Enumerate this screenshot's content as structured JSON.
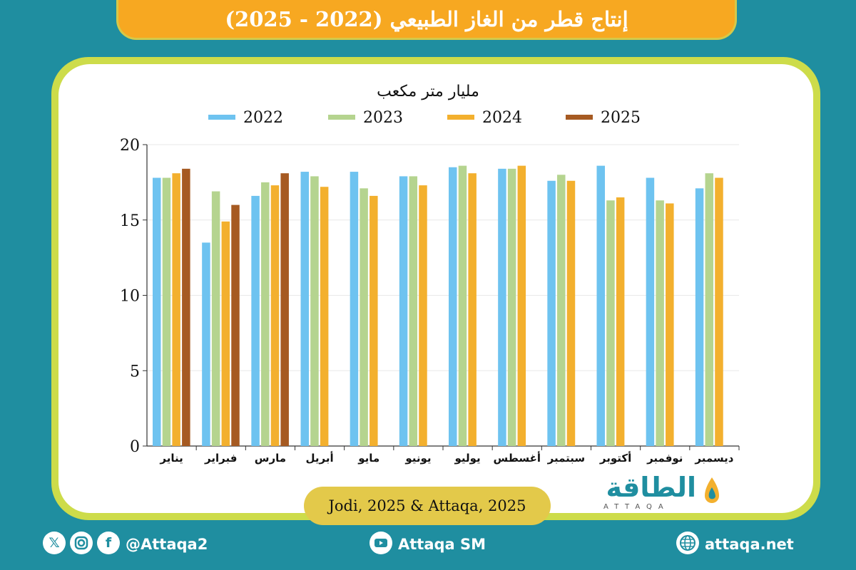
{
  "header": {
    "title": "إنتاج قطر من الغاز الطبيعي (2022 - 2025)"
  },
  "source": "Jodi, 2025 & Attaqa, 2025",
  "logo": {
    "arabic": "الطاقة",
    "latin": "ATTAQA"
  },
  "footer": {
    "social_handle": "@Attaqa2",
    "youtube": "Attaqa SM",
    "website": "attaqa.net",
    "icons": [
      "x-icon",
      "instagram-icon",
      "facebook-icon",
      "youtube-icon",
      "globe-icon"
    ]
  },
  "colors": {
    "2022": "#6ec3f0",
    "2023": "#b5d48f",
    "2024": "#f3b02e",
    "2025": "#a65a22",
    "accent": "#f7a821",
    "teal": "#1f8ea0"
  },
  "chart_data": {
    "type": "bar",
    "title": "مليار متر مكعب",
    "categories": [
      "يناير",
      "فبراير",
      "مارس",
      "أبريل",
      "مايو",
      "يونيو",
      "يوليو",
      "أغسطس",
      "سبتمبر",
      "أكتوبر",
      "نوفمبر",
      "ديسمبر"
    ],
    "series": [
      {
        "name": "2022",
        "values": [
          17.8,
          13.5,
          16.6,
          18.2,
          18.2,
          17.9,
          18.5,
          18.4,
          17.6,
          18.6,
          17.8,
          17.1
        ]
      },
      {
        "name": "2023",
        "values": [
          17.8,
          16.9,
          17.5,
          17.9,
          17.1,
          17.9,
          18.6,
          18.4,
          18.0,
          16.3,
          16.3,
          18.1
        ]
      },
      {
        "name": "2024",
        "values": [
          18.1,
          14.9,
          17.3,
          17.2,
          16.6,
          17.3,
          18.1,
          18.6,
          17.6,
          16.5,
          16.1,
          17.8
        ]
      },
      {
        "name": "2025",
        "values": [
          18.4,
          16.0,
          18.1,
          null,
          null,
          null,
          null,
          null,
          null,
          null,
          null,
          null
        ]
      }
    ],
    "ylim": [
      0,
      20
    ],
    "yticks": [
      0,
      5,
      10,
      15,
      20
    ],
    "legend_position": "top"
  }
}
